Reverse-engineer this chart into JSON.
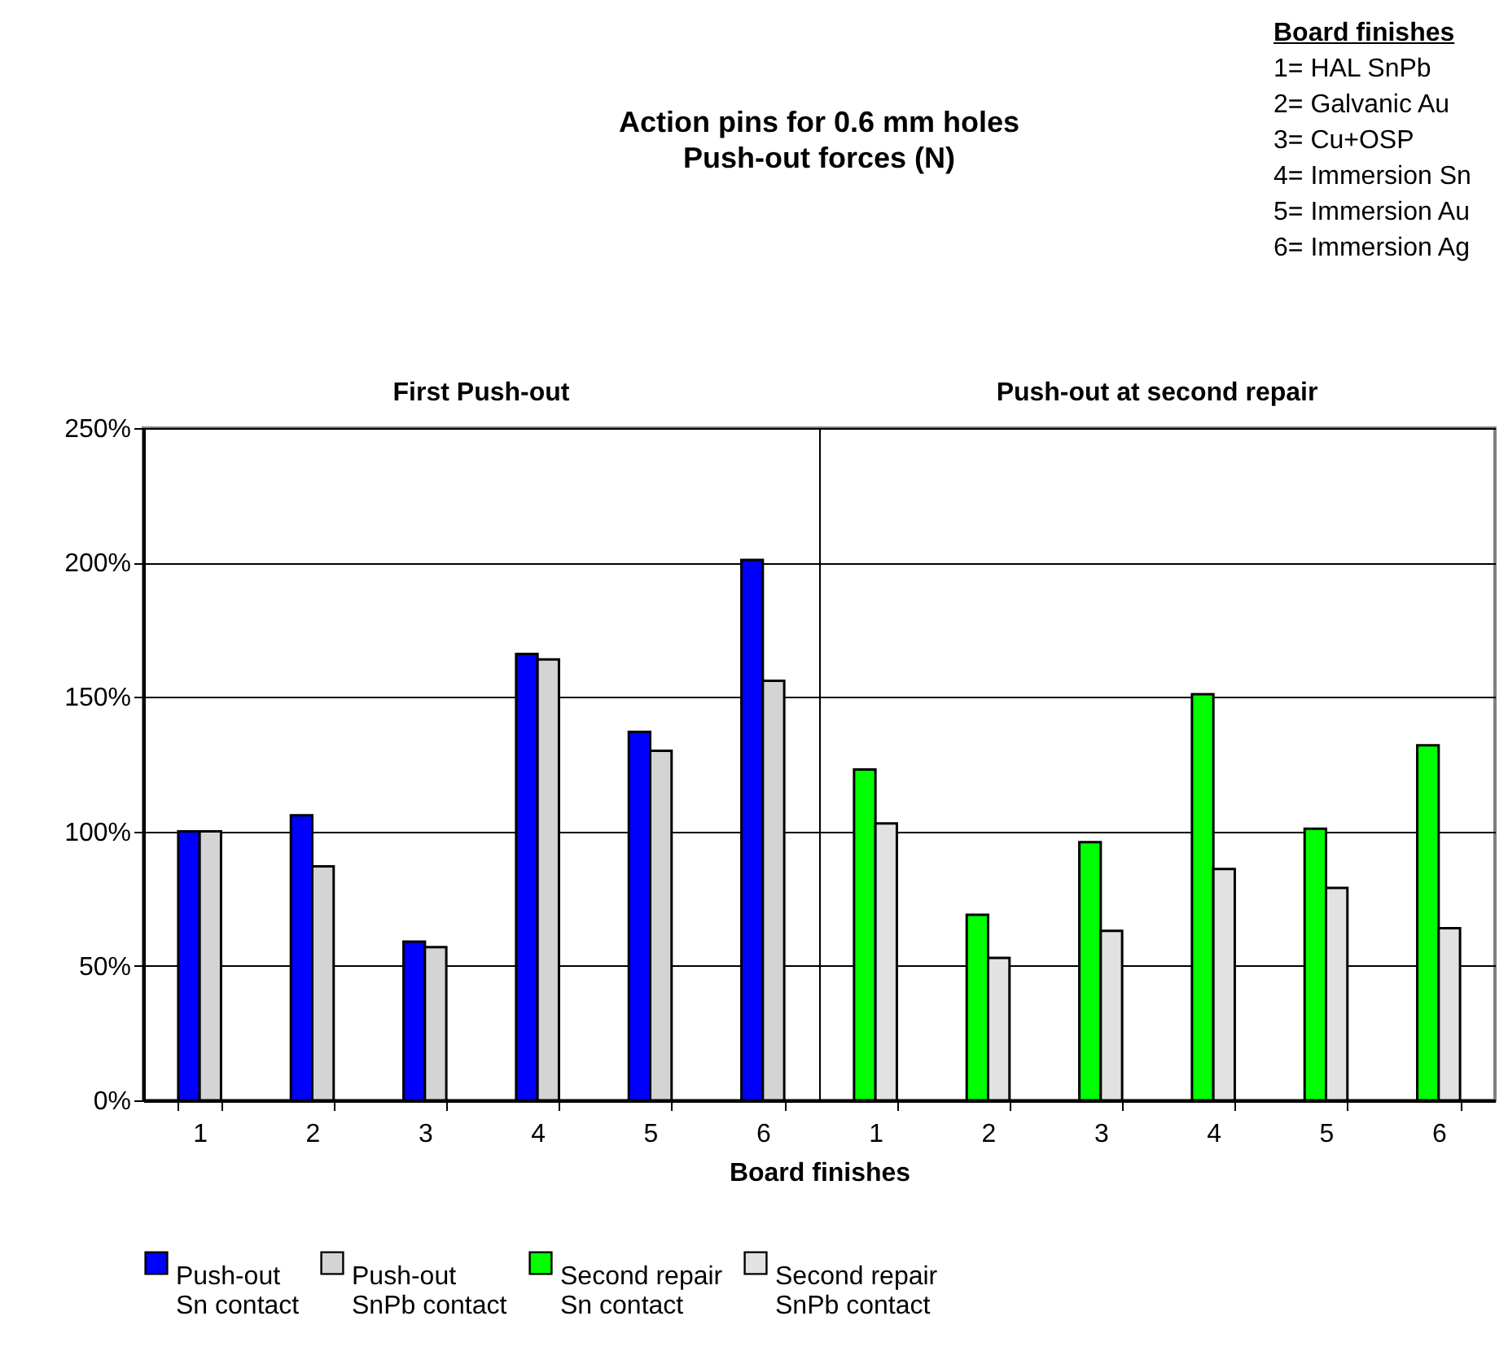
{
  "chart_data": {
    "type": "bar",
    "title": "Action pins for 0.6 mm holes",
    "subtitle": "Push-out forces (N)",
    "xlabel": "Board finishes",
    "annotations": [
      "First Push-out",
      "Push-out at second repair",
      "Board finishes",
      "1= HAL SnPb",
      "2= Galvanic Au",
      "3= Cu+OSP",
      "4= Immersion Sn",
      "5= Immersion Au",
      "6= Immersion Ag"
    ],
    "categories": [
      "1",
      "2",
      "3",
      "4",
      "5",
      "6",
      "1",
      "2",
      "3",
      "4",
      "5",
      "6"
    ],
    "series": [
      {
        "name": "Push-out Sn contact",
        "color": "#0000ff",
        "values": [
          100,
          106,
          59,
          166,
          137,
          201,
          null,
          null,
          null,
          null,
          null,
          null
        ]
      },
      {
        "name": "Push-out SnPb contact",
        "color": "#d4d4d4",
        "values": [
          100,
          87,
          57,
          164,
          130,
          156,
          null,
          null,
          null,
          null,
          null,
          null
        ]
      },
      {
        "name": "Second repair Sn contact",
        "color": "#00ff00",
        "values": [
          null,
          null,
          null,
          null,
          null,
          null,
          123,
          69,
          96,
          151,
          101,
          132
        ]
      },
      {
        "name": "Second repair SnPb contact",
        "color": "#e2e2e2",
        "values": [
          null,
          null,
          null,
          null,
          null,
          null,
          103,
          53,
          63,
          86,
          79,
          64
        ]
      }
    ],
    "ylim": [
      0,
      250
    ],
    "yticks": [
      {
        "value": 0,
        "label": "0%"
      },
      {
        "value": 50,
        "label": "50%"
      },
      {
        "value": 100,
        "label": "100%"
      },
      {
        "value": 150,
        "label": "150%"
      },
      {
        "value": 200,
        "label": "200%"
      },
      {
        "value": 250,
        "label": "250%"
      }
    ],
    "grid": "y",
    "legend": "bottom"
  }
}
